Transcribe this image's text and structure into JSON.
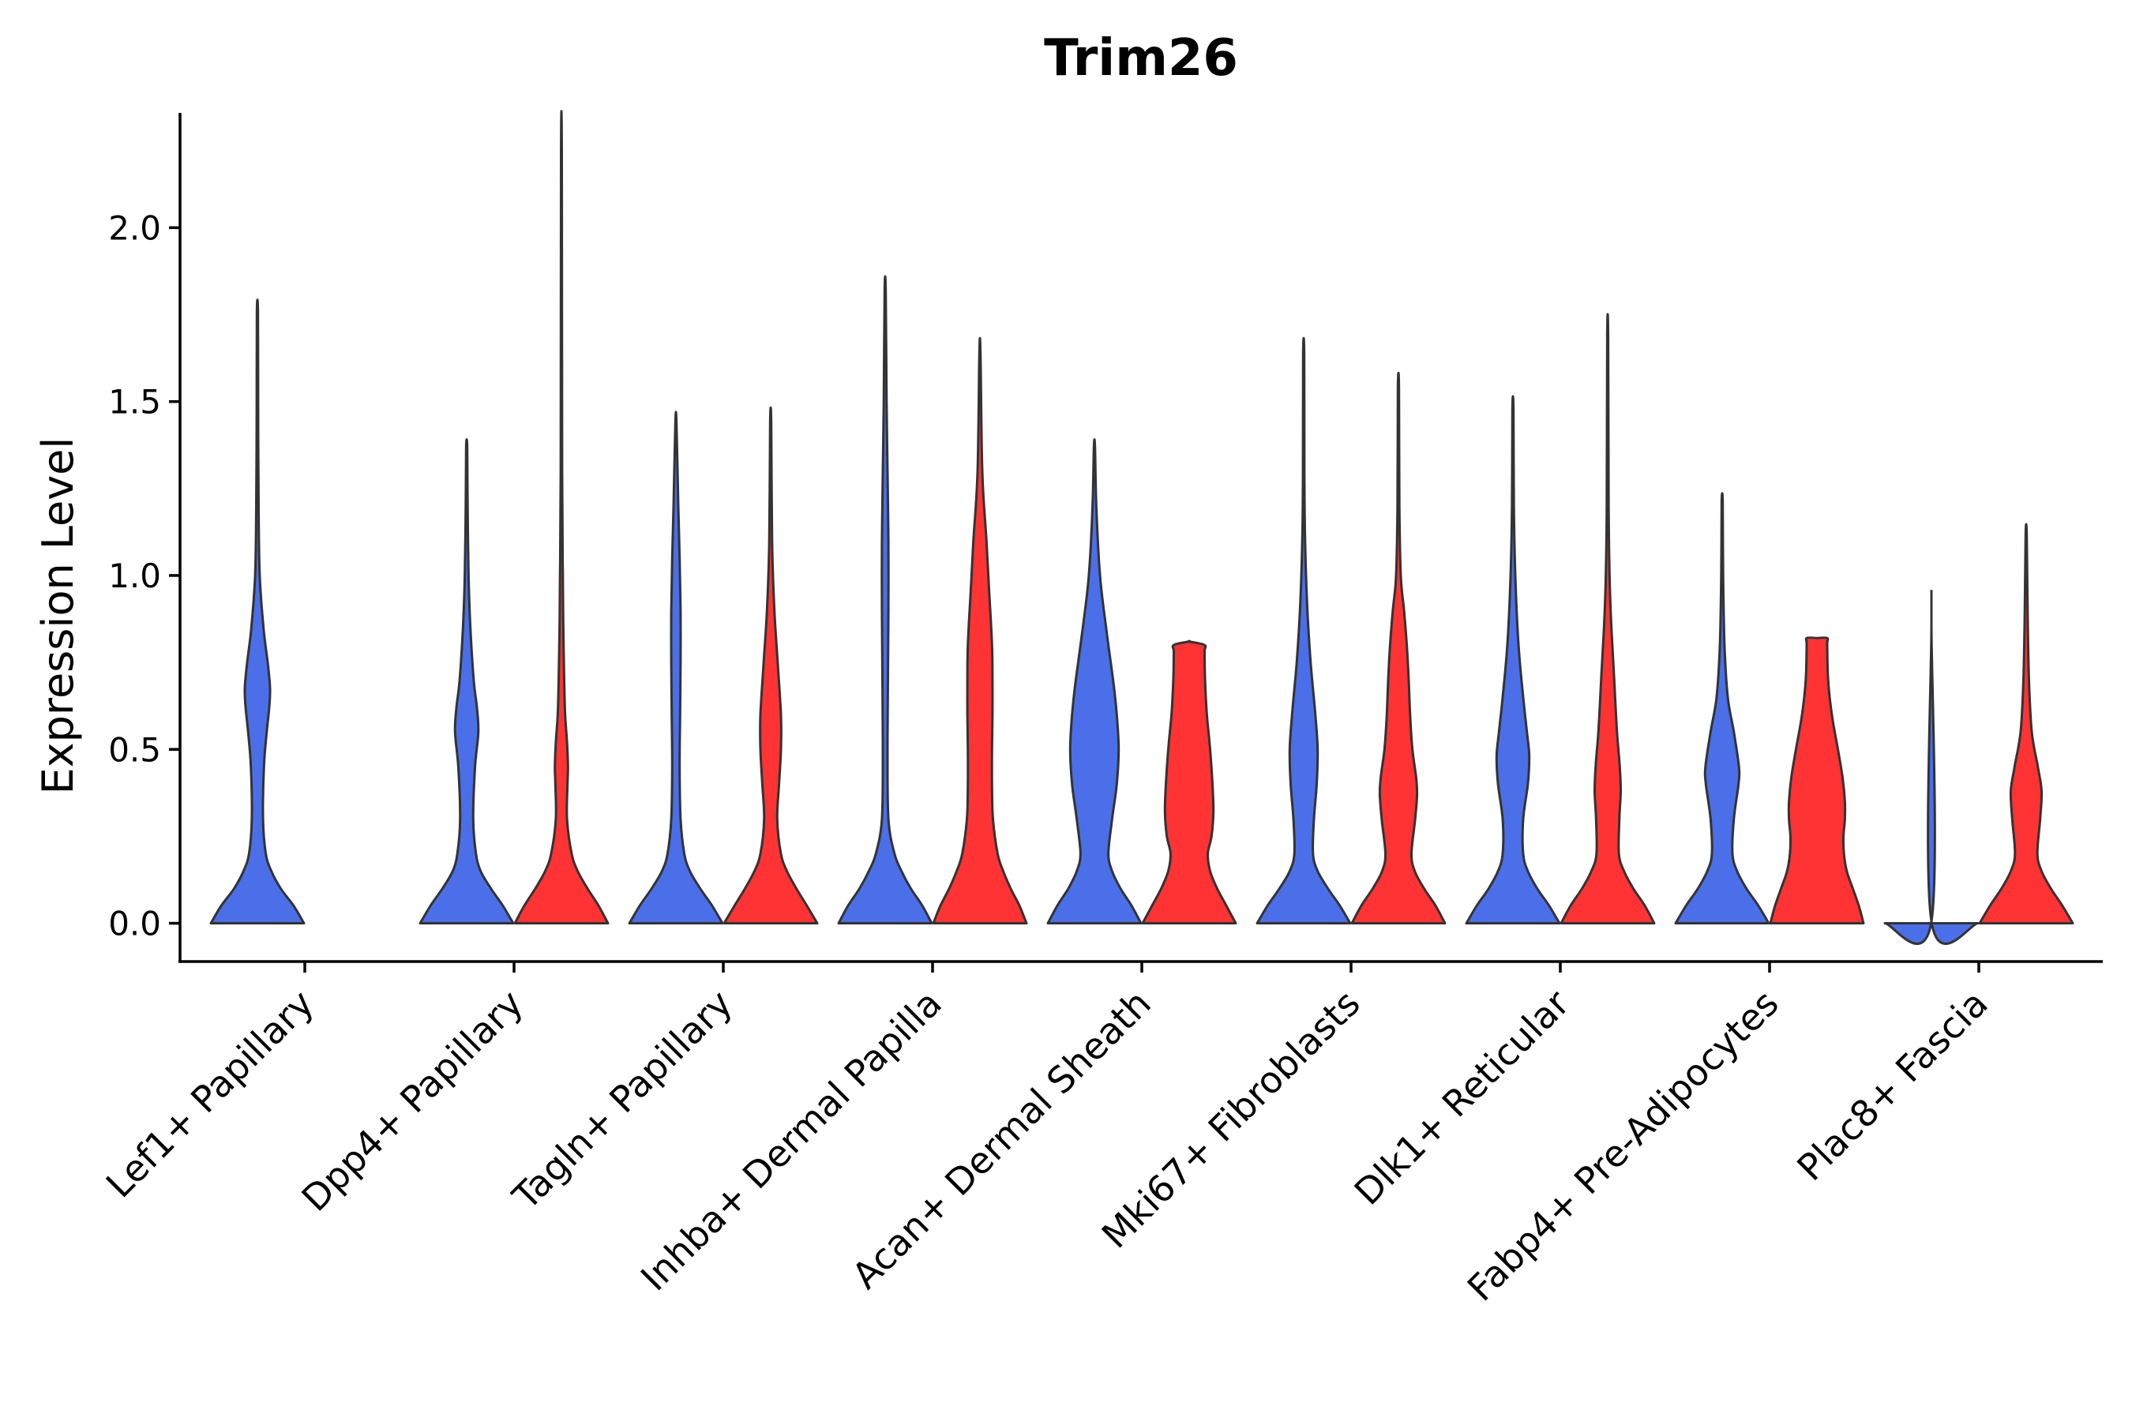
{
  "chart_data": {
    "type": "violin",
    "title": "Trim26",
    "xlabel": "",
    "ylabel": "Expression Level",
    "ylim": [
      -0.11,
      2.33
    ],
    "yticks": [
      "0.0",
      "0.5",
      "1.0",
      "1.5",
      "2.0"
    ],
    "ytick_values": [
      0,
      0.5,
      1.0,
      1.5,
      2.0
    ],
    "colors": {
      "blue": "#4a6fe8",
      "red": "#ff3333"
    },
    "categories": [
      "Lef1+ Papillary",
      "Dpp4+ Papillary",
      "Tagln+ Papillary",
      "Inhba+ Dermal Papilla",
      "Acan+ Dermal Sheath",
      "Mki67+ Fibroblasts",
      "Dlk1+ Reticular",
      "Fabp4+ Pre-Adipocytes",
      "Plac8+ Fascia"
    ],
    "series": [
      {
        "name": "blue",
        "max": [
          1.76,
          1.37,
          1.44,
          1.82,
          1.37,
          1.64,
          1.48,
          1.21,
          0.85
        ],
        "profiles": [
          [
            [
              0,
              1.0
            ],
            [
              0.05,
              0.78
            ],
            [
              0.1,
              0.5
            ],
            [
              0.15,
              0.3
            ],
            [
              0.2,
              0.18
            ],
            [
              0.3,
              0.12
            ],
            [
              0.45,
              0.14
            ],
            [
              0.55,
              0.2
            ],
            [
              0.63,
              0.26
            ],
            [
              0.68,
              0.27
            ],
            [
              0.75,
              0.22
            ],
            [
              0.85,
              0.13
            ],
            [
              1.0,
              0.05
            ],
            [
              1.2,
              0.025
            ],
            [
              1.5,
              0.015
            ],
            [
              1.76,
              0.012
            ]
          ],
          [
            [
              0,
              1.0
            ],
            [
              0.05,
              0.78
            ],
            [
              0.1,
              0.52
            ],
            [
              0.15,
              0.3
            ],
            [
              0.2,
              0.2
            ],
            [
              0.3,
              0.14
            ],
            [
              0.45,
              0.18
            ],
            [
              0.55,
              0.25
            ],
            [
              0.62,
              0.22
            ],
            [
              0.7,
              0.15
            ],
            [
              0.85,
              0.08
            ],
            [
              1.0,
              0.04
            ],
            [
              1.2,
              0.02
            ],
            [
              1.37,
              0.012
            ]
          ],
          [
            [
              0,
              1.0
            ],
            [
              0.05,
              0.78
            ],
            [
              0.1,
              0.52
            ],
            [
              0.15,
              0.3
            ],
            [
              0.2,
              0.18
            ],
            [
              0.3,
              0.1
            ],
            [
              0.45,
              0.08
            ],
            [
              0.6,
              0.09
            ],
            [
              0.75,
              0.1
            ],
            [
              0.9,
              0.1
            ],
            [
              1.05,
              0.08
            ],
            [
              1.2,
              0.05
            ],
            [
              1.44,
              0.012
            ]
          ],
          [
            [
              0,
              1.0
            ],
            [
              0.05,
              0.8
            ],
            [
              0.1,
              0.55
            ],
            [
              0.15,
              0.35
            ],
            [
              0.2,
              0.2
            ],
            [
              0.3,
              0.07
            ],
            [
              0.5,
              0.05
            ],
            [
              0.7,
              0.06
            ],
            [
              0.9,
              0.07
            ],
            [
              1.1,
              0.07
            ],
            [
              1.3,
              0.05
            ],
            [
              1.5,
              0.03
            ],
            [
              1.82,
              0.012
            ]
          ],
          [
            [
              0,
              1.0
            ],
            [
              0.05,
              0.8
            ],
            [
              0.1,
              0.56
            ],
            [
              0.15,
              0.38
            ],
            [
              0.2,
              0.3
            ],
            [
              0.3,
              0.38
            ],
            [
              0.4,
              0.48
            ],
            [
              0.5,
              0.52
            ],
            [
              0.6,
              0.48
            ],
            [
              0.7,
              0.4
            ],
            [
              0.85,
              0.25
            ],
            [
              1.0,
              0.12
            ],
            [
              1.2,
              0.04
            ],
            [
              1.37,
              0.012
            ]
          ],
          [
            [
              0,
              1.0
            ],
            [
              0.05,
              0.78
            ],
            [
              0.1,
              0.52
            ],
            [
              0.15,
              0.3
            ],
            [
              0.2,
              0.2
            ],
            [
              0.3,
              0.22
            ],
            [
              0.4,
              0.28
            ],
            [
              0.5,
              0.3
            ],
            [
              0.6,
              0.25
            ],
            [
              0.75,
              0.15
            ],
            [
              0.9,
              0.08
            ],
            [
              1.1,
              0.03
            ],
            [
              1.3,
              0.015
            ],
            [
              1.64,
              0.012
            ]
          ],
          [
            [
              0,
              1.0
            ],
            [
              0.05,
              0.78
            ],
            [
              0.1,
              0.52
            ],
            [
              0.15,
              0.32
            ],
            [
              0.2,
              0.22
            ],
            [
              0.3,
              0.22
            ],
            [
              0.4,
              0.32
            ],
            [
              0.48,
              0.35
            ],
            [
              0.55,
              0.3
            ],
            [
              0.65,
              0.22
            ],
            [
              0.8,
              0.12
            ],
            [
              1.0,
              0.05
            ],
            [
              1.2,
              0.02
            ],
            [
              1.48,
              0.012
            ]
          ],
          [
            [
              0,
              1.0
            ],
            [
              0.05,
              0.78
            ],
            [
              0.1,
              0.52
            ],
            [
              0.15,
              0.32
            ],
            [
              0.2,
              0.22
            ],
            [
              0.3,
              0.25
            ],
            [
              0.4,
              0.35
            ],
            [
              0.45,
              0.36
            ],
            [
              0.55,
              0.25
            ],
            [
              0.65,
              0.12
            ],
            [
              0.8,
              0.05
            ],
            [
              1.0,
              0.02
            ],
            [
              1.21,
              0.012
            ]
          ],
          [
            [
              0,
              1.0
            ],
            [
              0.005,
              0.0
            ],
            [
              0.85,
              0.0
            ]
          ]
        ]
      },
      {
        "name": "red",
        "max": [
          null,
          2.22,
          1.44,
          1.64,
          0.81,
          1.54,
          1.69,
          0.82,
          1.12
        ],
        "profiles": [
          [],
          [
            [
              0,
              1.0
            ],
            [
              0.05,
              0.8
            ],
            [
              0.1,
              0.56
            ],
            [
              0.15,
              0.35
            ],
            [
              0.2,
              0.22
            ],
            [
              0.3,
              0.12
            ],
            [
              0.4,
              0.13
            ],
            [
              0.45,
              0.14
            ],
            [
              0.52,
              0.12
            ],
            [
              0.6,
              0.08
            ],
            [
              0.7,
              0.06
            ],
            [
              0.85,
              0.04
            ],
            [
              1.0,
              0.03
            ],
            [
              1.3,
              0.015
            ],
            [
              2.22,
              0.008
            ]
          ],
          [
            [
              0,
              1.0
            ],
            [
              0.05,
              0.78
            ],
            [
              0.1,
              0.55
            ],
            [
              0.15,
              0.35
            ],
            [
              0.2,
              0.22
            ],
            [
              0.3,
              0.14
            ],
            [
              0.4,
              0.18
            ],
            [
              0.5,
              0.22
            ],
            [
              0.6,
              0.22
            ],
            [
              0.75,
              0.15
            ],
            [
              0.9,
              0.08
            ],
            [
              1.1,
              0.03
            ],
            [
              1.44,
              0.012
            ]
          ],
          [
            [
              0,
              1.0
            ],
            [
              0.05,
              0.85
            ],
            [
              0.1,
              0.66
            ],
            [
              0.15,
              0.5
            ],
            [
              0.2,
              0.38
            ],
            [
              0.3,
              0.28
            ],
            [
              0.4,
              0.26
            ],
            [
              0.5,
              0.26
            ],
            [
              0.6,
              0.27
            ],
            [
              0.7,
              0.27
            ],
            [
              0.8,
              0.26
            ],
            [
              0.95,
              0.2
            ],
            [
              1.1,
              0.14
            ],
            [
              1.3,
              0.05
            ],
            [
              1.64,
              0.012
            ]
          ],
          [
            [
              0,
              1.0
            ],
            [
              0.05,
              0.8
            ],
            [
              0.1,
              0.6
            ],
            [
              0.15,
              0.45
            ],
            [
              0.2,
              0.4
            ],
            [
              0.25,
              0.48
            ],
            [
              0.32,
              0.52
            ],
            [
              0.4,
              0.5
            ],
            [
              0.5,
              0.45
            ],
            [
              0.6,
              0.38
            ],
            [
              0.7,
              0.34
            ],
            [
              0.78,
              0.33
            ],
            [
              0.8,
              0.33
            ],
            [
              0.81,
              0.0
            ]
          ],
          [
            [
              0,
              1.0
            ],
            [
              0.05,
              0.8
            ],
            [
              0.1,
              0.55
            ],
            [
              0.15,
              0.35
            ],
            [
              0.2,
              0.28
            ],
            [
              0.3,
              0.36
            ],
            [
              0.37,
              0.4
            ],
            [
              0.42,
              0.38
            ],
            [
              0.5,
              0.3
            ],
            [
              0.6,
              0.25
            ],
            [
              0.7,
              0.22
            ],
            [
              0.8,
              0.18
            ],
            [
              0.9,
              0.12
            ],
            [
              1.0,
              0.05
            ],
            [
              1.2,
              0.02
            ],
            [
              1.54,
              0.012
            ]
          ],
          [
            [
              0,
              1.0
            ],
            [
              0.05,
              0.8
            ],
            [
              0.1,
              0.55
            ],
            [
              0.15,
              0.35
            ],
            [
              0.2,
              0.24
            ],
            [
              0.3,
              0.25
            ],
            [
              0.38,
              0.28
            ],
            [
              0.45,
              0.26
            ],
            [
              0.55,
              0.2
            ],
            [
              0.7,
              0.14
            ],
            [
              0.85,
              0.08
            ],
            [
              1.0,
              0.04
            ],
            [
              1.2,
              0.02
            ],
            [
              1.69,
              0.01
            ]
          ],
          [
            [
              0,
              1.0
            ],
            [
              0.05,
              0.9
            ],
            [
              0.1,
              0.77
            ],
            [
              0.15,
              0.64
            ],
            [
              0.2,
              0.58
            ],
            [
              0.25,
              0.57
            ],
            [
              0.3,
              0.6
            ],
            [
              0.35,
              0.6
            ],
            [
              0.42,
              0.55
            ],
            [
              0.5,
              0.45
            ],
            [
              0.6,
              0.32
            ],
            [
              0.7,
              0.24
            ],
            [
              0.8,
              0.22
            ],
            [
              0.82,
              0.22
            ],
            [
              0.82,
              0.0
            ]
          ],
          [
            [
              0,
              1.0
            ],
            [
              0.05,
              0.78
            ],
            [
              0.1,
              0.53
            ],
            [
              0.15,
              0.33
            ],
            [
              0.2,
              0.24
            ],
            [
              0.3,
              0.3
            ],
            [
              0.38,
              0.33
            ],
            [
              0.45,
              0.25
            ],
            [
              0.55,
              0.12
            ],
            [
              0.7,
              0.06
            ],
            [
              0.9,
              0.03
            ],
            [
              1.12,
              0.012
            ]
          ]
        ]
      }
    ]
  }
}
